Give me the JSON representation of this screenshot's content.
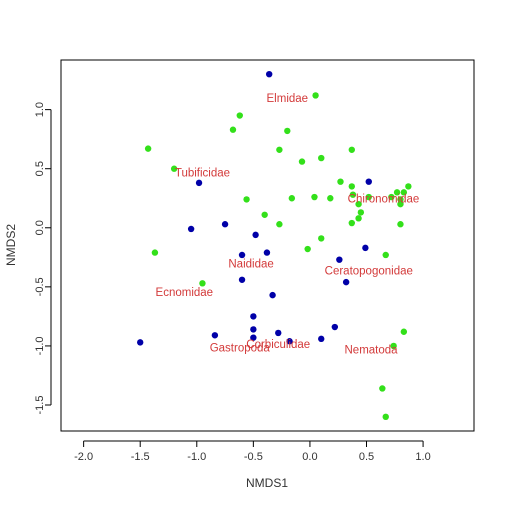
{
  "chart_data": {
    "type": "scatter",
    "xlabel": "NMDS1",
    "ylabel": "NMDS2",
    "xlim": [
      -2.2,
      1.45
    ],
    "ylim": [
      -1.72,
      1.42
    ],
    "x_ticks": [
      -2.0,
      -1.5,
      -1.0,
      -0.5,
      0.0,
      0.5,
      1.0
    ],
    "x_tick_labels": [
      "-2.0",
      "-1.5",
      "-1.0",
      "-0.5",
      "0.0",
      "0.5",
      "1.0"
    ],
    "y_ticks": [
      -1.5,
      -1.0,
      -0.5,
      0.0,
      0.5,
      1.0
    ],
    "y_tick_labels": [
      "-1.5",
      "-1.0",
      "-0.5",
      "0.0",
      "0.5",
      "1.0"
    ],
    "grid": false,
    "series": [
      {
        "color": "#0000a8",
        "points": [
          [
            -0.36,
            1.3
          ],
          [
            -0.98,
            0.38
          ],
          [
            0.52,
            0.39
          ],
          [
            -1.05,
            -0.01
          ],
          [
            -0.75,
            0.03
          ],
          [
            -0.48,
            -0.06
          ],
          [
            -0.6,
            -0.23
          ],
          [
            -0.38,
            -0.21
          ],
          [
            -0.6,
            -0.44
          ],
          [
            0.26,
            -0.27
          ],
          [
            0.32,
            -0.46
          ],
          [
            0.49,
            -0.17
          ],
          [
            -0.33,
            -0.57
          ],
          [
            -0.5,
            -0.75
          ],
          [
            -0.5,
            -0.86
          ],
          [
            -0.84,
            -0.91
          ],
          [
            -0.5,
            -0.93
          ],
          [
            -0.28,
            -0.89
          ],
          [
            -0.18,
            -0.96
          ],
          [
            0.1,
            -0.94
          ],
          [
            0.22,
            -0.84
          ],
          [
            -1.5,
            -0.97
          ]
        ]
      },
      {
        "color": "#33e01a",
        "points": [
          [
            0.05,
            1.12
          ],
          [
            -0.62,
            0.95
          ],
          [
            -0.68,
            0.83
          ],
          [
            -0.2,
            0.82
          ],
          [
            -1.43,
            0.67
          ],
          [
            -0.27,
            0.66
          ],
          [
            0.37,
            0.66
          ],
          [
            -0.07,
            0.56
          ],
          [
            0.1,
            0.59
          ],
          [
            -1.2,
            0.5
          ],
          [
            0.27,
            0.39
          ],
          [
            0.37,
            0.35
          ],
          [
            0.38,
            0.28
          ],
          [
            0.52,
            0.26
          ],
          [
            0.72,
            0.26
          ],
          [
            0.77,
            0.3
          ],
          [
            0.83,
            0.3
          ],
          [
            0.87,
            0.35
          ],
          [
            0.8,
            0.24
          ],
          [
            0.8,
            0.2
          ],
          [
            0.43,
            0.2
          ],
          [
            0.45,
            0.13
          ],
          [
            0.43,
            0.08
          ],
          [
            0.37,
            0.04
          ],
          [
            0.8,
            0.03
          ],
          [
            0.04,
            0.26
          ],
          [
            -0.16,
            0.25
          ],
          [
            0.18,
            0.25
          ],
          [
            -0.56,
            0.24
          ],
          [
            -0.4,
            0.11
          ],
          [
            -0.27,
            0.03
          ],
          [
            0.1,
            -0.09
          ],
          [
            -0.02,
            -0.18
          ],
          [
            -1.37,
            -0.21
          ],
          [
            -0.95,
            -0.47
          ],
          [
            0.67,
            -0.23
          ],
          [
            0.83,
            -0.88
          ],
          [
            0.74,
            -1.0
          ],
          [
            0.64,
            -1.36
          ],
          [
            0.67,
            -1.6
          ]
        ]
      }
    ],
    "species": [
      {
        "name": "Elmidae",
        "x": -0.2,
        "y": 1.09
      },
      {
        "name": "Tubificidae",
        "x": -0.95,
        "y": 0.46
      },
      {
        "name": "Chironomidae",
        "x": 0.65,
        "y": 0.24
      },
      {
        "name": "Naididae",
        "x": -0.52,
        "y": -0.31
      },
      {
        "name": "Ceratopogonidae",
        "x": 0.52,
        "y": -0.37
      },
      {
        "name": "Ecnomidae",
        "x": -1.11,
        "y": -0.55
      },
      {
        "name": "Gastropoda",
        "x": -0.62,
        "y": -1.02
      },
      {
        "name": "Corbiculidae",
        "x": -0.28,
        "y": -0.99
      },
      {
        "name": "Nematoda",
        "x": 0.54,
        "y": -1.04
      }
    ]
  }
}
